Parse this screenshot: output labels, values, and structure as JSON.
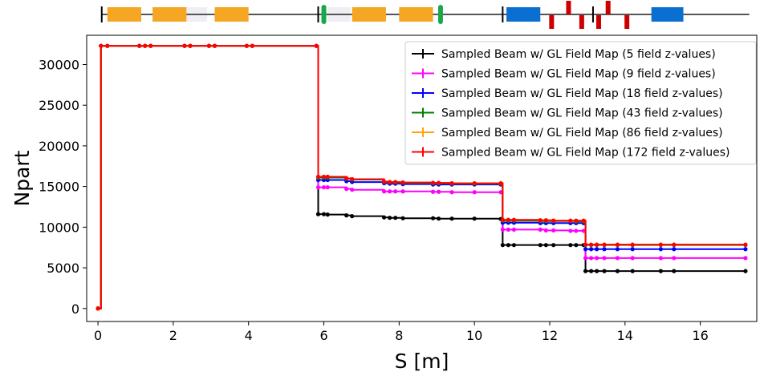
{
  "chart_data": {
    "type": "line",
    "title": "",
    "xlabel": "S [m]",
    "ylabel": "Npart",
    "xlim": [
      -0.3,
      17.5
    ],
    "ylim": [
      -1600,
      33600
    ],
    "x_ticks": [
      0,
      2,
      4,
      6,
      8,
      10,
      12,
      14,
      16
    ],
    "x_tick_labels": [
      "0",
      "2",
      "4",
      "6",
      "8",
      "10",
      "12",
      "14",
      "16"
    ],
    "y_ticks": [
      0,
      5000,
      10000,
      15000,
      20000,
      25000,
      30000
    ],
    "y_tick_labels": [
      "0",
      "5000",
      "10000",
      "15000",
      "20000",
      "25000",
      "30000"
    ],
    "grid": false,
    "legend_position": "top-right",
    "x": [
      0,
      0.08,
      0.25,
      1.1,
      1.25,
      1.4,
      2.3,
      2.45,
      2.95,
      3.1,
      3.95,
      4.1,
      5.8,
      5.85,
      6.0,
      6.1,
      6.6,
      6.75,
      7.6,
      7.75,
      7.9,
      8.1,
      8.9,
      9.05,
      9.4,
      10.0,
      10.7,
      10.75,
      10.9,
      11.05,
      11.75,
      11.9,
      12.1,
      12.55,
      12.7,
      12.9,
      12.95,
      13.1,
      13.25,
      13.45,
      13.8,
      14.2,
      14.95,
      15.3,
      17.2
    ],
    "series": [
      {
        "name": "Sampled Beam w/ GL Field Map (5 field z-values)",
        "color": "#000000",
        "values": [
          0,
          32300,
          32300,
          32300,
          32300,
          32300,
          32300,
          32300,
          32300,
          32300,
          32300,
          32300,
          32300,
          11600,
          11600,
          11550,
          11450,
          11350,
          11200,
          11150,
          11150,
          11100,
          11100,
          11050,
          11050,
          11050,
          11000,
          7800,
          7800,
          7800,
          7800,
          7800,
          7800,
          7800,
          7800,
          7800,
          4600,
          4600,
          4600,
          4600,
          4600,
          4600,
          4600,
          4600,
          4600
        ]
      },
      {
        "name": "Sampled Beam w/ GL Field Map (9 field z-values)",
        "color": "#ff00ff",
        "values": [
          0,
          32300,
          32300,
          32300,
          32300,
          32300,
          32300,
          32300,
          32300,
          32300,
          32300,
          32300,
          32300,
          14900,
          14900,
          14900,
          14700,
          14600,
          14400,
          14400,
          14400,
          14400,
          14350,
          14350,
          14300,
          14300,
          14300,
          9700,
          9700,
          9700,
          9700,
          9600,
          9600,
          9550,
          9550,
          9550,
          6200,
          6200,
          6200,
          6200,
          6200,
          6200,
          6200,
          6200,
          6200
        ]
      },
      {
        "name": "Sampled Beam w/ GL Field Map (18 field z-values)",
        "color": "#0000ff",
        "values": [
          0,
          32300,
          32300,
          32300,
          32300,
          32300,
          32300,
          32300,
          32300,
          32300,
          32300,
          32300,
          32300,
          15800,
          15800,
          15800,
          15650,
          15550,
          15400,
          15350,
          15350,
          15300,
          15250,
          15250,
          15250,
          15250,
          15250,
          10550,
          10550,
          10550,
          10500,
          10500,
          10500,
          10500,
          10500,
          10500,
          7300,
          7300,
          7300,
          7300,
          7300,
          7300,
          7300,
          7300,
          7300
        ]
      },
      {
        "name": "Sampled Beam w/ GL Field Map (43 field z-values)",
        "color": "#008000",
        "values": [
          0,
          32300,
          32300,
          32300,
          32300,
          32300,
          32300,
          32300,
          32300,
          32300,
          32300,
          32300,
          32300,
          16100,
          16100,
          16100,
          15950,
          15850,
          15550,
          15500,
          15500,
          15450,
          15400,
          15400,
          15350,
          15350,
          15350,
          10800,
          10800,
          10800,
          10750,
          10750,
          10750,
          10750,
          10700,
          10700,
          7800,
          7800,
          7800,
          7800,
          7800,
          7800,
          7800,
          7800,
          7800
        ]
      },
      {
        "name": "Sampled Beam w/ GL Field Map (86 field z-values)",
        "color": "#ffa500",
        "values": [
          0,
          32300,
          32300,
          32300,
          32300,
          32300,
          32300,
          32300,
          32300,
          32300,
          32300,
          32300,
          32300,
          16200,
          16200,
          16200,
          16000,
          15900,
          15600,
          15550,
          15550,
          15500,
          15450,
          15450,
          15400,
          15400,
          15400,
          10900,
          10900,
          10900,
          10850,
          10850,
          10800,
          10800,
          10800,
          10800,
          7850,
          7850,
          7850,
          7850,
          7850,
          7850,
          7850,
          7850,
          7850
        ]
      },
      {
        "name": "Sampled Beam w/ GL Field Map (172 field z-values)",
        "color": "#ff0000",
        "values": [
          0,
          32300,
          32300,
          32300,
          32300,
          32300,
          32300,
          32300,
          32300,
          32300,
          32300,
          32300,
          32300,
          16200,
          16200,
          16200,
          16000,
          15900,
          15600,
          15550,
          15550,
          15500,
          15450,
          15450,
          15400,
          15400,
          15400,
          10900,
          10900,
          10900,
          10850,
          10850,
          10800,
          10800,
          10800,
          10800,
          7850,
          7850,
          7850,
          7850,
          7850,
          7850,
          7850,
          7850,
          7850
        ]
      }
    ],
    "lattice": {
      "line_color": "#555555",
      "elements": [
        {
          "kind": "quad",
          "s0": 0.25,
          "s1": 1.15,
          "color": "#f5a623"
        },
        {
          "kind": "quad",
          "s0": 1.45,
          "s1": 2.35,
          "color": "#f5a623"
        },
        {
          "kind": "drift-shade",
          "s0": 2.35,
          "s1": 2.9,
          "color": "#eeeef4"
        },
        {
          "kind": "quad",
          "s0": 3.1,
          "s1": 4.0,
          "color": "#f5a623"
        },
        {
          "kind": "drift-shade",
          "s0": 6.1,
          "s1": 6.7,
          "color": "#eeeef4"
        },
        {
          "kind": "quad",
          "s0": 6.75,
          "s1": 7.65,
          "color": "#f5a623"
        },
        {
          "kind": "quad",
          "s0": 8.0,
          "s1": 8.9,
          "color": "#f5a623"
        },
        {
          "kind": "dipole",
          "s0": 10.85,
          "s1": 11.75,
          "color": "#0a6fd0"
        },
        {
          "kind": "dipole",
          "s0": 14.7,
          "s1": 15.55,
          "color": "#0a6fd0"
        }
      ],
      "markers": [
        {
          "kind": "marker",
          "s": 0.1,
          "color": "#000000"
        },
        {
          "kind": "marker",
          "s": 5.85,
          "color": "#000000"
        },
        {
          "kind": "marker",
          "s": 10.75,
          "color": "#000000"
        },
        {
          "kind": "marker",
          "s": 13.15,
          "color": "#000000"
        },
        {
          "kind": "cavity",
          "s": 6.0,
          "color": "#1aa64a"
        },
        {
          "kind": "cavity",
          "s": 9.1,
          "color": "#1aa64a"
        }
      ],
      "correctors": [
        {
          "s": 12.05,
          "side": "down",
          "color": "#cc0000"
        },
        {
          "s": 12.5,
          "side": "up",
          "color": "#cc0000"
        },
        {
          "s": 12.85,
          "side": "down",
          "color": "#cc0000"
        },
        {
          "s": 13.3,
          "side": "down",
          "color": "#cc0000"
        },
        {
          "s": 13.55,
          "side": "up",
          "color": "#cc0000"
        },
        {
          "s": 14.05,
          "side": "down",
          "color": "#cc0000"
        }
      ]
    }
  }
}
